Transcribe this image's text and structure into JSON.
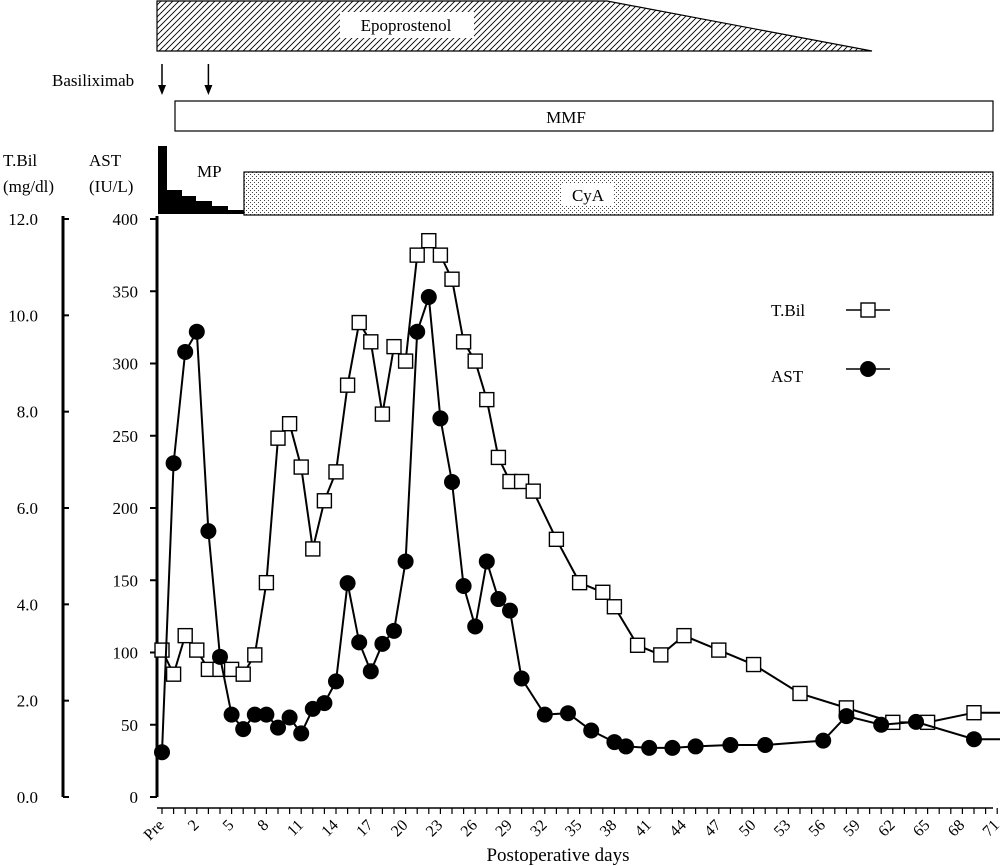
{
  "chart_data": {
    "type": "line",
    "xlabel": "Postoperative days",
    "x_tick_labels": [
      "Pre",
      "2",
      "5",
      "8",
      "11",
      "14",
      "17",
      "20",
      "23",
      "26",
      "29",
      "32",
      "35",
      "38",
      "41",
      "44",
      "47",
      "50",
      "53",
      "56",
      "59",
      "62",
      "65",
      "68",
      "71"
    ],
    "x_range": [
      -1,
      72
    ],
    "left_axis": {
      "label_line1": "T.Bil",
      "label_line2": "(mg/dl)",
      "ticks": [
        "0.0",
        "2.0",
        "4.0",
        "6.0",
        "8.0",
        "10.0",
        "12.0"
      ],
      "ylim": [
        0,
        12
      ]
    },
    "right_axis": {
      "label_line1": "AST",
      "label_line2": "(IU/L)",
      "ticks": [
        "0",
        "50",
        "100",
        "150",
        "200",
        "250",
        "300",
        "350",
        "400"
      ],
      "ylim": [
        0,
        400
      ]
    },
    "legend_placement": "right",
    "series": [
      {
        "name": "T.Bil",
        "axis": "left",
        "marker": "open-square",
        "points": [
          [
            -1,
            3.05
          ],
          [
            0,
            2.55
          ],
          [
            1,
            3.35
          ],
          [
            2,
            3.05
          ],
          [
            3,
            2.65
          ],
          [
            4,
            2.65
          ],
          [
            5,
            2.65
          ],
          [
            6,
            2.55
          ],
          [
            7,
            2.95
          ],
          [
            8,
            4.45
          ],
          [
            9,
            7.45
          ],
          [
            10,
            7.75
          ],
          [
            11,
            6.85
          ],
          [
            12,
            5.15
          ],
          [
            13,
            6.15
          ],
          [
            14,
            6.75
          ],
          [
            15,
            8.55
          ],
          [
            16,
            9.85
          ],
          [
            17,
            9.45
          ],
          [
            18,
            7.95
          ],
          [
            19,
            9.35
          ],
          [
            20,
            9.05
          ],
          [
            21,
            11.25
          ],
          [
            22,
            11.55
          ],
          [
            23,
            11.25
          ],
          [
            24,
            10.75
          ],
          [
            25,
            9.45
          ],
          [
            26,
            9.05
          ],
          [
            27,
            8.25
          ],
          [
            28,
            7.05
          ],
          [
            29,
            6.55
          ],
          [
            30,
            6.55
          ],
          [
            31,
            6.35
          ],
          [
            33,
            5.35
          ],
          [
            35,
            4.45
          ],
          [
            37,
            4.25
          ],
          [
            38,
            3.95
          ],
          [
            40,
            3.15
          ],
          [
            42,
            2.95
          ],
          [
            44,
            3.35
          ],
          [
            47,
            3.05
          ],
          [
            50,
            2.75
          ],
          [
            54,
            2.15
          ],
          [
            58,
            1.85
          ],
          [
            62,
            1.55
          ],
          [
            65,
            1.55
          ],
          [
            69,
            1.75
          ],
          [
            72,
            1.75
          ]
        ]
      },
      {
        "name": "AST",
        "axis": "right",
        "marker": "filled-circle",
        "points": [
          [
            -1,
            31
          ],
          [
            0,
            231
          ],
          [
            1,
            308
          ],
          [
            2,
            322
          ],
          [
            3,
            184
          ],
          [
            4,
            97
          ],
          [
            5,
            57
          ],
          [
            6,
            47
          ],
          [
            7,
            57
          ],
          [
            8,
            57
          ],
          [
            9,
            48
          ],
          [
            10,
            55
          ],
          [
            11,
            44
          ],
          [
            12,
            61
          ],
          [
            13,
            65
          ],
          [
            14,
            80
          ],
          [
            15,
            148
          ],
          [
            16,
            107
          ],
          [
            17,
            87
          ],
          [
            18,
            106
          ],
          [
            19,
            115
          ],
          [
            20,
            163
          ],
          [
            21,
            322
          ],
          [
            22,
            346
          ],
          [
            23,
            262
          ],
          [
            24,
            218
          ],
          [
            25,
            146
          ],
          [
            26,
            118
          ],
          [
            27,
            163
          ],
          [
            28,
            137
          ],
          [
            29,
            129
          ],
          [
            30,
            82
          ],
          [
            32,
            57
          ],
          [
            34,
            58
          ],
          [
            36,
            46
          ],
          [
            38,
            38
          ],
          [
            39,
            35
          ],
          [
            41,
            34
          ],
          [
            43,
            34
          ],
          [
            45,
            35
          ],
          [
            48,
            36
          ],
          [
            51,
            36
          ],
          [
            56,
            39
          ],
          [
            58,
            56
          ],
          [
            61,
            50
          ],
          [
            64,
            52
          ],
          [
            69,
            40
          ],
          [
            72,
            40
          ]
        ]
      }
    ],
    "treatments": {
      "epoprostenol_label": "Epoprostenol",
      "basiliximab_label": "Basiliximab",
      "basiliximab_days": [
        -1,
        3
      ],
      "mmf_label": "MMF",
      "mp_label": "MP",
      "cya_label": "CyA"
    }
  }
}
